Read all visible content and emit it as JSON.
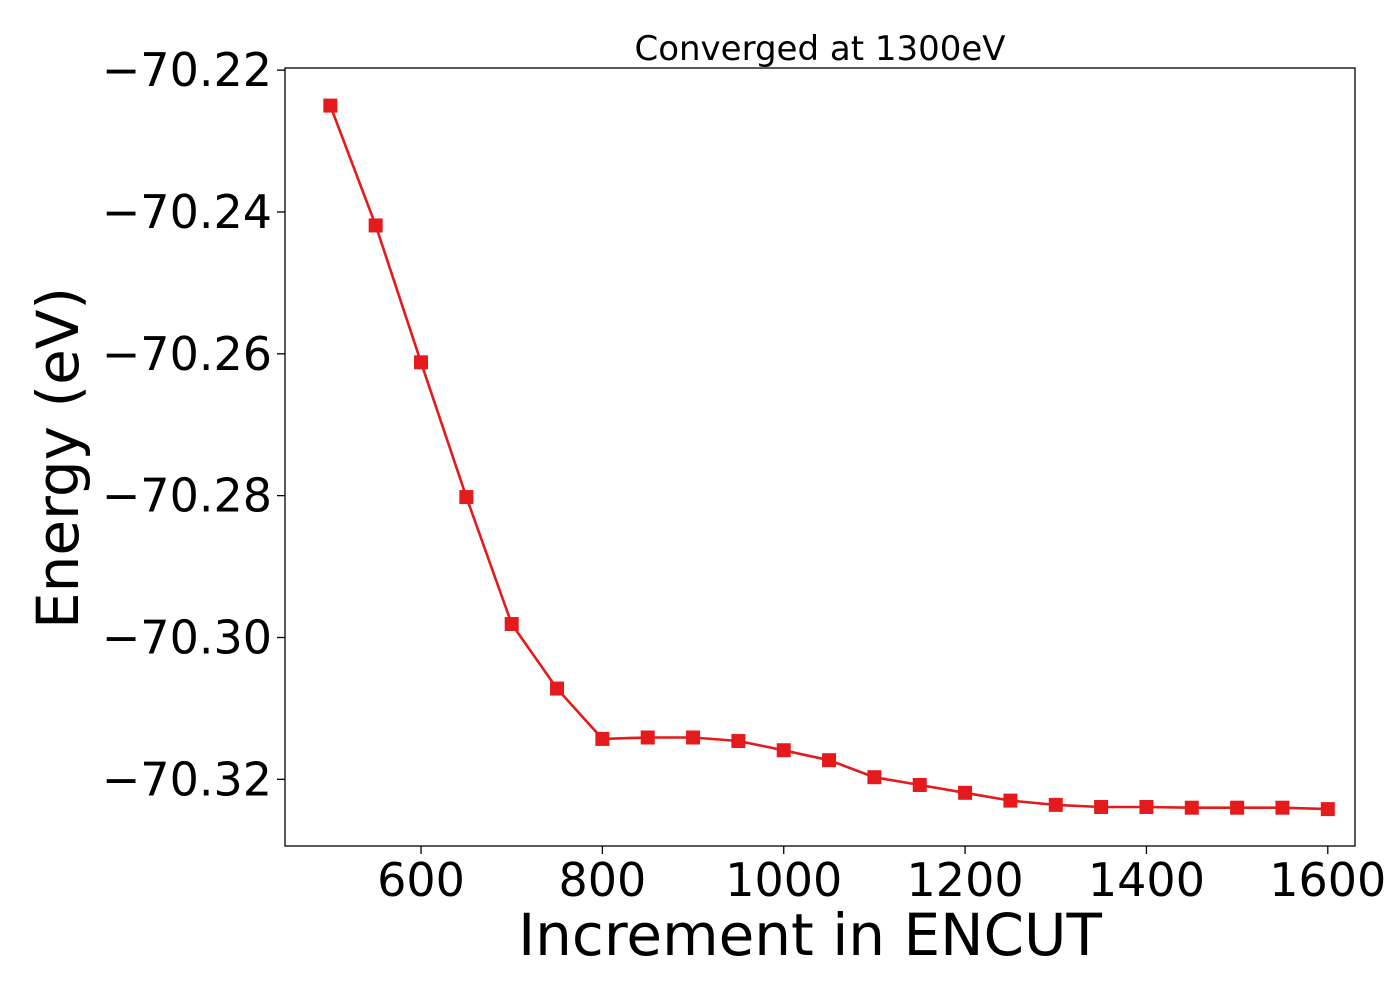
{
  "chart_data": {
    "type": "line",
    "title": "Converged at 1300eV",
    "xlabel": "Increment in ENCUT",
    "ylabel": "Energy (eV)",
    "xlim": [
      450,
      1630
    ],
    "ylim": [
      -70.3294,
      -70.2197
    ],
    "xticks": [
      600,
      800,
      1000,
      1200,
      1400,
      1600
    ],
    "yticks": [
      -70.22,
      -70.24,
      -70.26,
      -70.28,
      -70.3,
      -70.32
    ],
    "ytick_labels": [
      "−70.22",
      "−70.24",
      "−70.26",
      "−70.28",
      "−70.30",
      "−70.32"
    ],
    "grid": false,
    "series": [
      {
        "color": "#e41a1c",
        "marker": "square",
        "x": [
          500,
          550,
          600,
          650,
          700,
          750,
          800,
          850,
          900,
          950,
          1000,
          1050,
          1100,
          1150,
          1200,
          1250,
          1300,
          1350,
          1400,
          1450,
          1500,
          1550,
          1600
        ],
        "y": [
          -70.225,
          -70.2419,
          -70.2612,
          -70.2802,
          -70.2981,
          -70.3072,
          -70.3143,
          -70.3141,
          -70.3141,
          -70.3146,
          -70.3159,
          -70.3173,
          -70.3197,
          -70.3208,
          -70.3219,
          -70.323,
          -70.3236,
          -70.3239,
          -70.3239,
          -70.324,
          -70.324,
          -70.324,
          -70.3242
        ]
      }
    ]
  }
}
